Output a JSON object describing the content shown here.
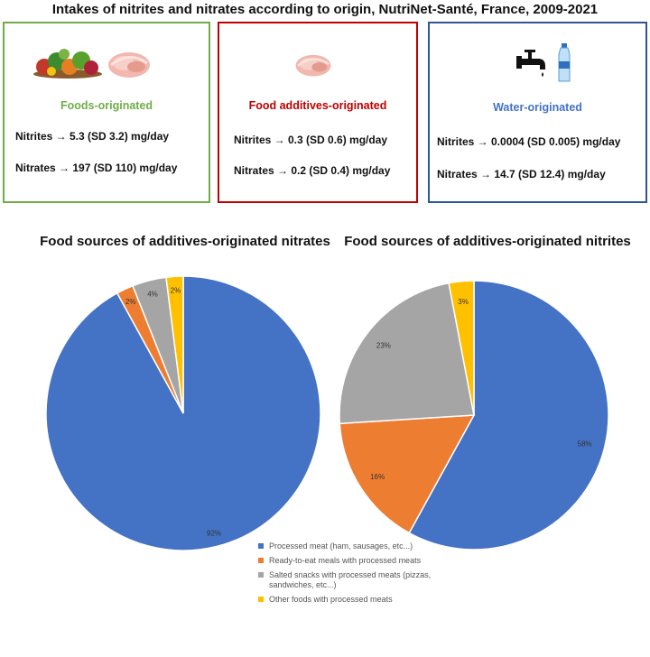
{
  "title": "Intakes of nitrites and nitrates according to origin, NutriNet-Santé, France, 2009-2021",
  "cards": [
    {
      "key": "foods",
      "title": "Foods-originated",
      "title_color": "#70ad47",
      "border_color": "#70ad47",
      "lines": [
        "Nitrites → 5.3 (SD 3.2) mg/day",
        "Nitrates → 197 (SD 110) mg/day"
      ],
      "icons": [
        "vegetables-icon",
        "ham-icon"
      ]
    },
    {
      "key": "additives",
      "title": "Food additives-originated",
      "title_color": "#c00000",
      "border_color": "#c00000",
      "lines": [
        "Nitrites → 0.3 (SD 0.6) mg/day",
        "Nitrates → 0.2 (SD 0.4) mg/day"
      ],
      "icons": [
        "ham-icon"
      ]
    },
    {
      "key": "water",
      "title": "Water-originated",
      "title_color": "#4472c4",
      "border_color": "#2e5597",
      "lines": [
        "Nitrites → 0.0004 (SD 0.005) mg/day",
        "Nitrates → 14.7 (SD 12.4) mg/day"
      ],
      "icons": [
        "faucet-icon",
        "water-bottle-icon"
      ]
    }
  ],
  "colors": {
    "blue": "#4472c4",
    "orange": "#ed7d31",
    "gray": "#a5a5a5",
    "yellow": "#ffc000"
  },
  "chart_data": [
    {
      "type": "pie",
      "title": "Food sources of additives-originated nitrates",
      "slices": [
        {
          "label": "Processed meat (ham, sausages, etc...)",
          "value": 92,
          "display": "92%",
          "color": "#4472c4"
        },
        {
          "label": "Ready-to-eat meals with processed meats",
          "value": 2,
          "display": "2%",
          "color": "#ed7d31"
        },
        {
          "label": "Salted snacks with processed meats (pizzas, sandwiches, etc...)",
          "value": 4,
          "display": "4%",
          "color": "#a5a5a5"
        },
        {
          "label": "Other foods with processed meats",
          "value": 2,
          "display": "2%",
          "color": "#ffc000"
        }
      ]
    },
    {
      "type": "pie",
      "title": "Food sources of additives-originated nitrites",
      "slices": [
        {
          "label": "Processed meat (ham, sausages, etc...)",
          "value": 58,
          "display": "58%",
          "color": "#4472c4"
        },
        {
          "label": "Ready-to-eat meals with processed meats",
          "value": 16,
          "display": "16%",
          "color": "#ed7d31"
        },
        {
          "label": "Salted snacks with processed meats (pizzas, sandwiches, etc...)",
          "value": 23,
          "display": "23%",
          "color": "#a5a5a5"
        },
        {
          "label": "Other foods with processed meats",
          "value": 3,
          "display": "3%",
          "color": "#ffc000"
        }
      ]
    }
  ],
  "legend": [
    {
      "label": "Processed meat (ham, sausages, etc...)",
      "color": "#4472c4"
    },
    {
      "label": "Ready-to-eat meals with processed meats",
      "color": "#ed7d31"
    },
    {
      "label": "Salted snacks with processed meats (pizzas, sandwiches, etc...)",
      "color": "#a5a5a5"
    },
    {
      "label": "Other foods with processed meats",
      "color": "#ffc000"
    }
  ]
}
